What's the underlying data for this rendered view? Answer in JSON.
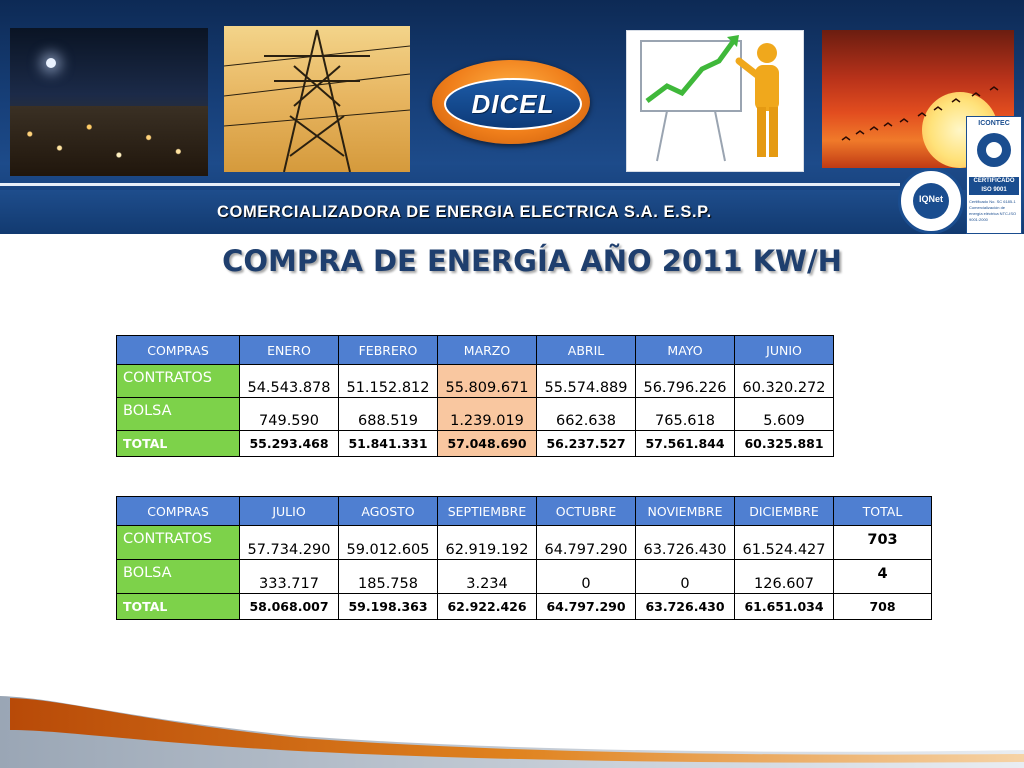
{
  "header": {
    "logo_text": "DICEL",
    "tagline": "COMERCIALIZADORA DE ENERGIA ELECTRICA S.A. E.S.P.",
    "cert_iqnet": "IQNet",
    "cert_icontec_top": "ICONTEC",
    "cert_icontec_band": "CERTIFICADO ISO 9001",
    "cert_icontec_fine": "Certificado No. SC 6185-1 Comercialización de energía eléctrica NTC-ISO 9001:2000"
  },
  "title": "COMPRA DE ENERGÍA AÑO 2011 KW/H",
  "colors": {
    "header_blue": "#1d4b8a",
    "table_head": "#4f7fd1",
    "row_label": "#7dd24a",
    "highlight": "#f9c7a0",
    "title": "#1f3f6e",
    "accent_orange": "#f07f1b"
  },
  "table1": {
    "headers": [
      "COMPRAS",
      "ENERO",
      "FEBRERO",
      "MARZO",
      "ABRIL",
      "MAYO",
      "JUNIO"
    ],
    "rows": [
      {
        "label": "CONTRATOS",
        "values": [
          "54.543.878",
          "51.152.812",
          "55.809.671",
          "55.574.889",
          "56.796.226",
          "60.320.272"
        ]
      },
      {
        "label": "BOLSA",
        "values": [
          "749.590",
          "688.519",
          "1.239.019",
          "662.638",
          "765.618",
          "5.609"
        ]
      },
      {
        "label": "TOTAL",
        "values": [
          "55.293.468",
          "51.841.331",
          "57.048.690",
          "56.237.527",
          "57.561.844",
          "60.325.881"
        ]
      }
    ]
  },
  "table2": {
    "headers": [
      "COMPRAS",
      "JULIO",
      "AGOSTO",
      "SEPTIEMBRE",
      "OCTUBRE",
      "NOVIEMBRE",
      "DICIEMBRE",
      "TOTAL"
    ],
    "rows": [
      {
        "label": "CONTRATOS",
        "values": [
          "57.734.290",
          "59.012.605",
          "62.919.192",
          "64.797.290",
          "63.726.430",
          "61.524.427",
          "703"
        ]
      },
      {
        "label": "BOLSA",
        "values": [
          "333.717",
          "185.758",
          "3.234",
          "0",
          "0",
          "126.607",
          "4"
        ]
      },
      {
        "label": "TOTAL",
        "values": [
          "58.068.007",
          "59.198.363",
          "62.922.426",
          "64.797.290",
          "63.726.430",
          "61.651.034",
          "708"
        ]
      }
    ]
  }
}
